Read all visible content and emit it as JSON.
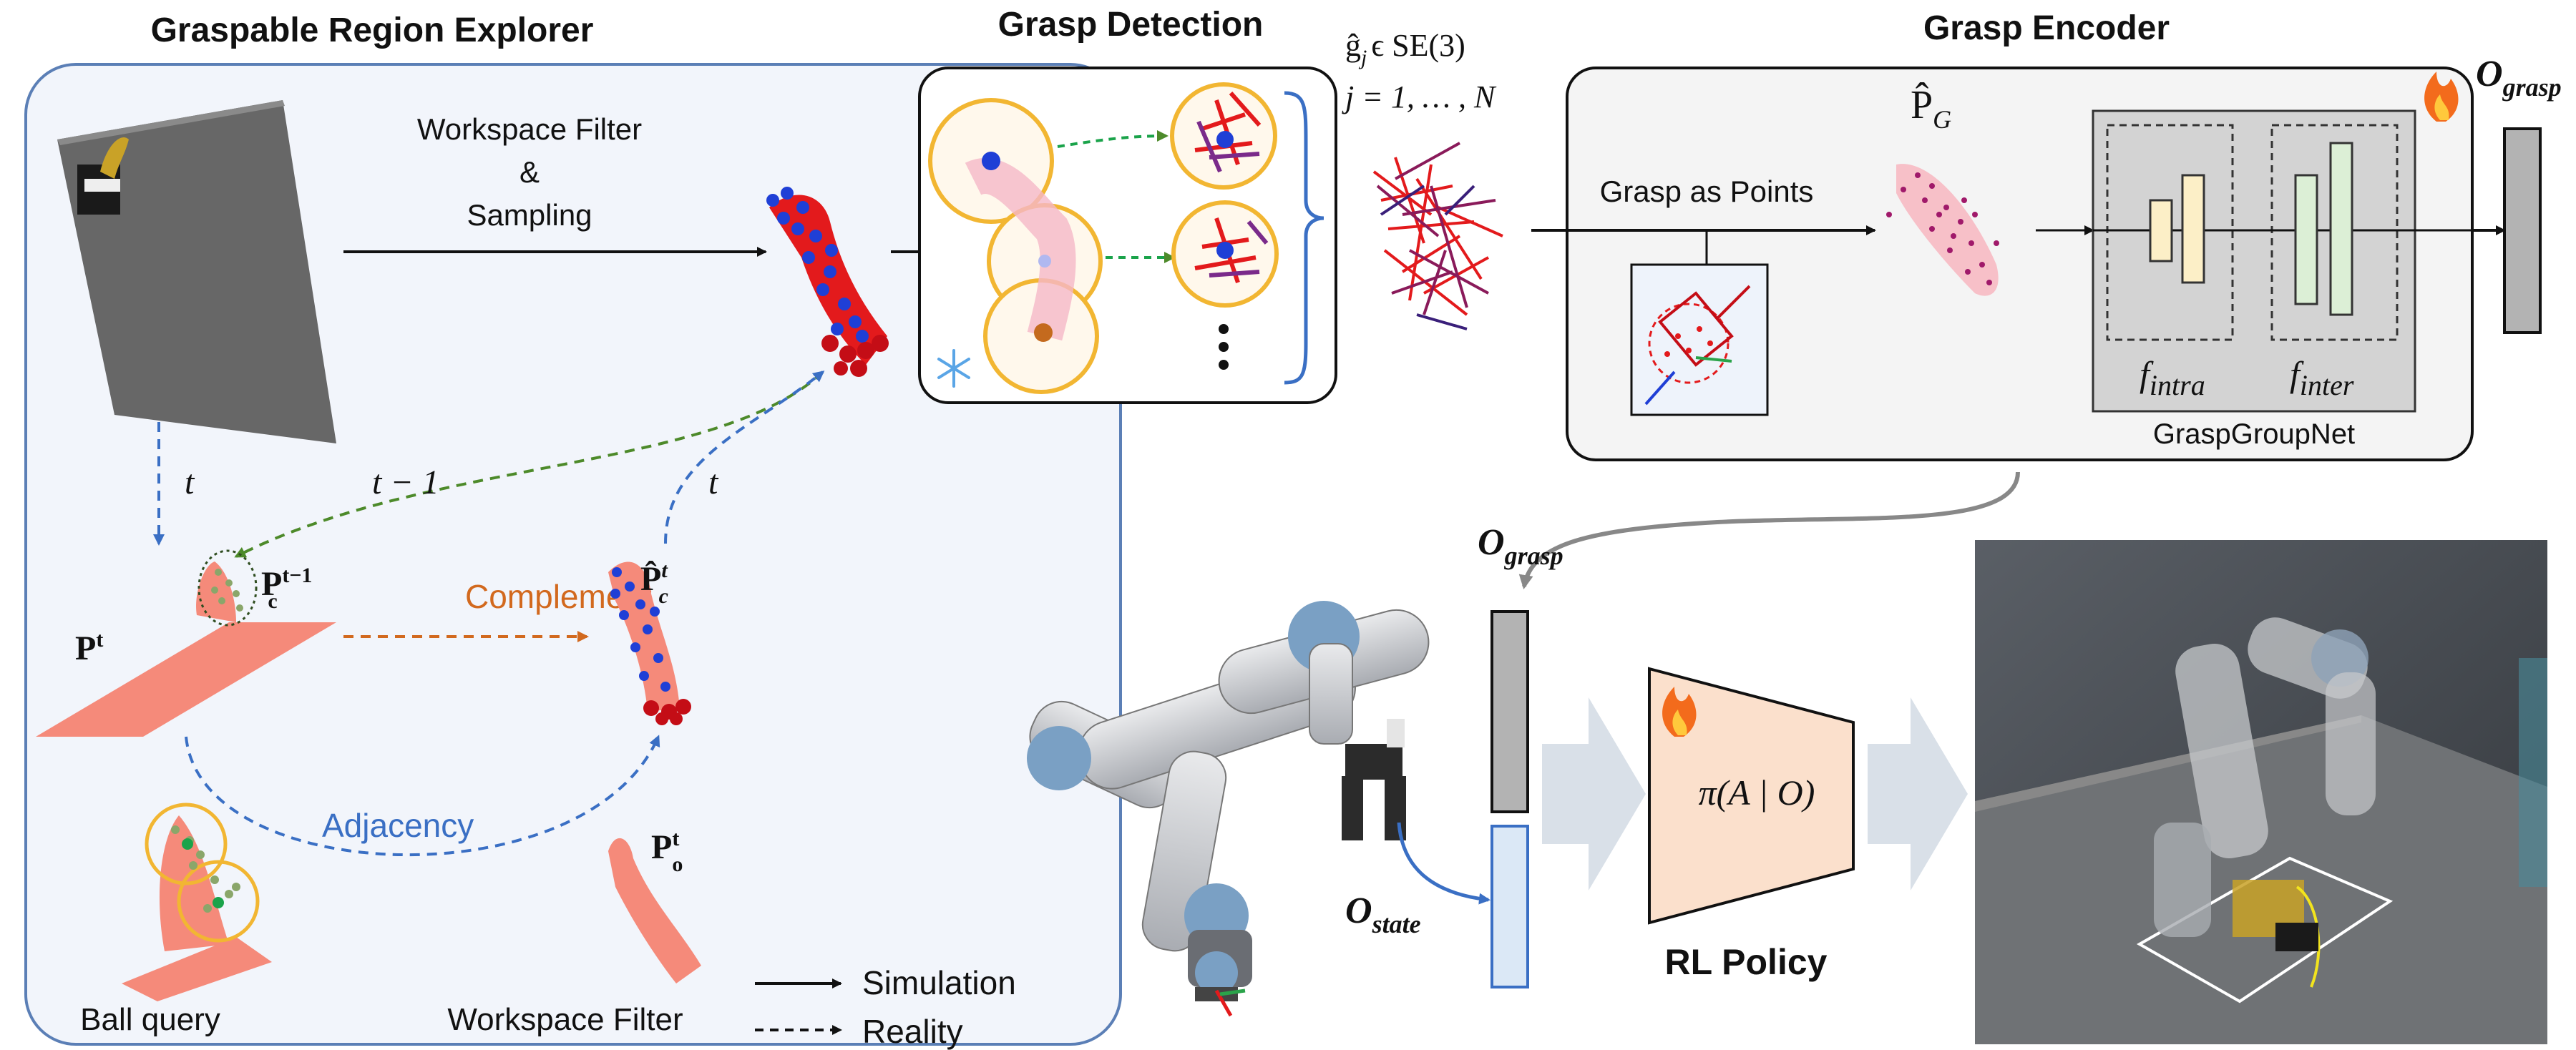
{
  "panels": {
    "explorer_title": "Graspable Region Explorer",
    "detection_title": "Grasp Detection",
    "encoder_title": "Grasp Encoder",
    "policy_label": "RL Policy"
  },
  "explorer": {
    "filter_line1": "Workspace Filter",
    "filter_line2": "&",
    "filter_line3": "Sampling",
    "t_left": "t",
    "t_minus_1": "t − 1",
    "t_right": "t",
    "pc_prev_base": "P",
    "pc_prev_sub": "c",
    "pc_prev_sup": "t−1",
    "complement": "Complement",
    "pt_base": "P",
    "pt_sup": "t",
    "phat_base": "P̂",
    "phat_sub": "c",
    "phat_sup": "t",
    "adjacency": "Adjacency",
    "po_base": "P",
    "po_sub": "o",
    "po_sup": "t",
    "ball_query": "Ball query",
    "workspace_filter": "Workspace Filter"
  },
  "legend": {
    "simulation": "Simulation",
    "reality": "Reality"
  },
  "detection": {
    "grasp_set": "ĝ",
    "grasp_set_sub": "j",
    "grasp_set_rest": "ϵ SE(3)",
    "index_range": "j = 1, … , N"
  },
  "encoder": {
    "grasp_as_points": "Grasp as Points",
    "pg_base": "P̂",
    "pg_sub": "G",
    "f_intra_base": "f",
    "f_intra_sub": "intra",
    "f_inter_base": "f",
    "f_inter_sub": "inter",
    "net_name": "GraspGroupNet"
  },
  "obs": {
    "o_grasp_base": "O",
    "o_grasp_sub": "grasp",
    "o_grasp_mid_base": "O",
    "o_grasp_mid_sub": "grasp",
    "o_state_base": "O",
    "o_state_sub": "state",
    "policy_formula": "π(A | O)"
  },
  "colors": {
    "explorer_bg": "#f2f5fb",
    "explorer_border": "#5b7fb6",
    "point_red": "#e31a1c",
    "point_blue": "#1f3fd6",
    "salmon": "#f58a7a",
    "complement_orange": "#d2691e",
    "adjacency_blue": "#3a6fc4",
    "dashed_green": "#4d8a2a",
    "yellow": "#f2b632",
    "policy_fill": "#fbe0cc",
    "intra_fill": "#fcefc7",
    "inter_fill": "#dcefd6",
    "grasp_bar": "#b3b3b3",
    "state_bar": "#dbe8f6"
  },
  "icons": [
    "fire-icon",
    "snowflake-icon"
  ]
}
